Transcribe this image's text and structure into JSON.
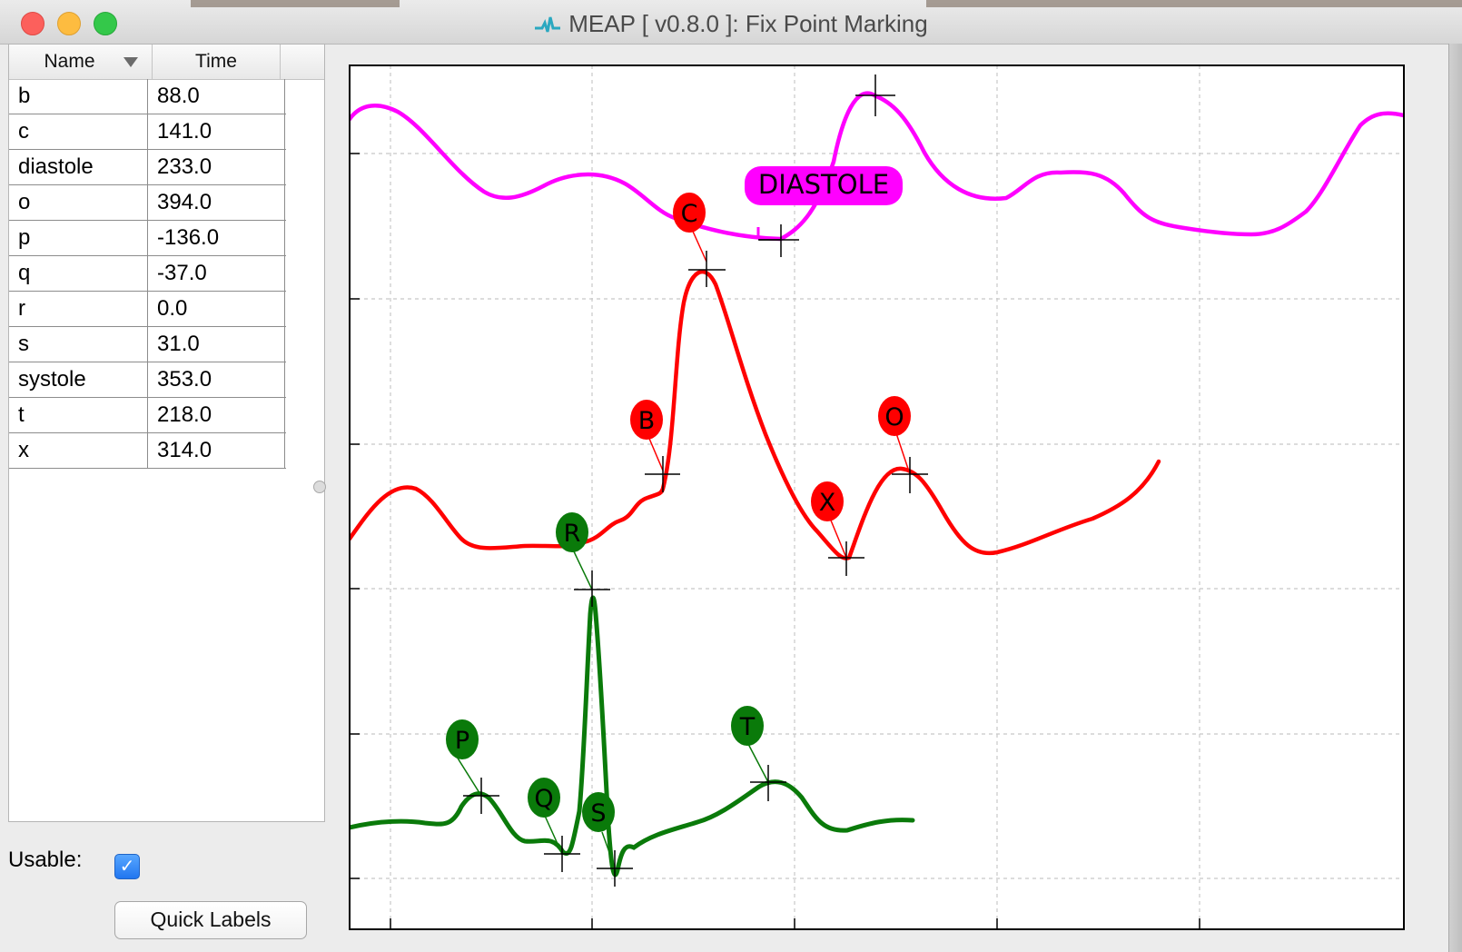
{
  "window": {
    "title": "MEAP [ v0.8.0 ]: Fix Point Marking"
  },
  "table": {
    "columns": [
      "Name",
      "Time"
    ],
    "rows": [
      {
        "name": "b",
        "time": "88.0"
      },
      {
        "name": "c",
        "time": "141.0"
      },
      {
        "name": "diastole",
        "time": "233.0"
      },
      {
        "name": "o",
        "time": "394.0"
      },
      {
        "name": "p",
        "time": "-136.0"
      },
      {
        "name": "q",
        "time": "-37.0"
      },
      {
        "name": "r",
        "time": "0.0"
      },
      {
        "name": "s",
        "time": "31.0"
      },
      {
        "name": "systole",
        "time": "353.0"
      },
      {
        "name": "t",
        "time": "218.0"
      },
      {
        "name": "x",
        "time": "314.0"
      }
    ]
  },
  "controls": {
    "usable_label": "Usable:",
    "usable_checked": true,
    "quick_labels_button": "Quick Labels"
  },
  "plot": {
    "marker_labels": {
      "green": [
        "P",
        "Q",
        "R",
        "S",
        "T"
      ],
      "red": [
        "B",
        "C",
        "X",
        "O"
      ],
      "magenta": [
        "DIASTOLE"
      ]
    },
    "colors": {
      "ecg": "#0a7a0a",
      "dzdt": "#ff0000",
      "bp": "#ff00ff",
      "grid": "#c8c8c8"
    }
  }
}
